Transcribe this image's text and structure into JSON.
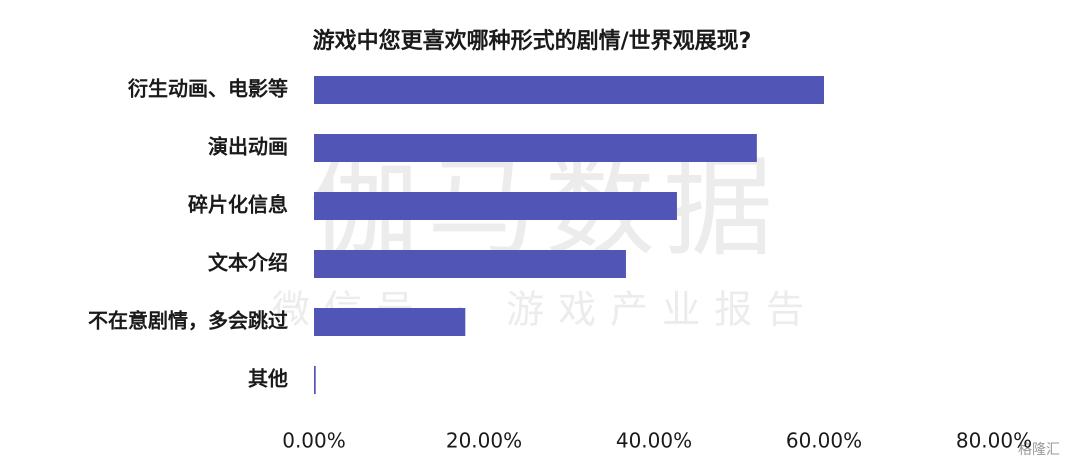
{
  "chart_data": {
    "type": "bar",
    "orientation": "horizontal",
    "title": "游戏中您更喜欢哪种形式的剧情/世界观展现?",
    "categories": [
      "衍生动画、电影等",
      "演出动画",
      "碎片化信息",
      "文本介绍",
      "不在意剧情，多会跳过",
      "其他"
    ],
    "values": [
      60.0,
      52.1,
      42.7,
      36.7,
      17.8,
      0.2
    ],
    "color": "#5155b5",
    "xlim": [
      0,
      80
    ],
    "xticks": [
      {
        "value": 0,
        "label": "0.00%"
      },
      {
        "value": 20,
        "label": "20.00%"
      },
      {
        "value": 40,
        "label": "40.00%"
      },
      {
        "value": 60,
        "label": "60.00%"
      },
      {
        "value": 80,
        "label": "80.00%"
      }
    ],
    "grid": false,
    "watermark": [
      "伽马数据",
      "微信号 · 游戏产业报告"
    ],
    "source_logo": "格隆汇"
  }
}
